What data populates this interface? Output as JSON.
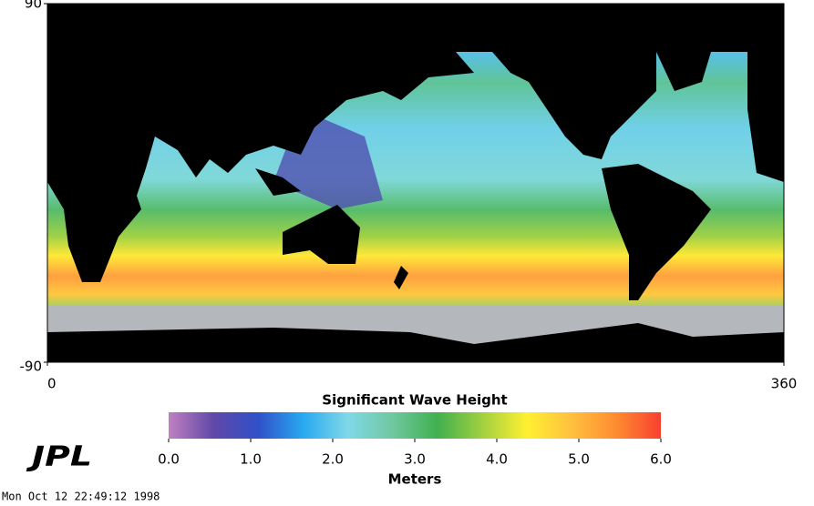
{
  "map": {
    "xlim": [
      0,
      360
    ],
    "ylim": [
      -90,
      90
    ],
    "xticks": [
      0,
      360
    ],
    "yticks": [
      -90,
      90
    ]
  },
  "colorbar": {
    "title": "Significant Wave Height",
    "unit_label": "Meters",
    "range": [
      0,
      6
    ],
    "ticks": [
      {
        "value": 0,
        "label": "0.0"
      },
      {
        "value": 1,
        "label": "1.0"
      },
      {
        "value": 2,
        "label": "2.0"
      },
      {
        "value": 3,
        "label": "3.0"
      },
      {
        "value": 4,
        "label": "4.0"
      },
      {
        "value": 5,
        "label": "5.0"
      },
      {
        "value": 6,
        "label": "6.0"
      }
    ],
    "colors": [
      "#c080c0",
      "#6048a8",
      "#3050c8",
      "#28a8f0",
      "#80d8e8",
      "#70c8a0",
      "#40b050",
      "#a0d040",
      "#fff030",
      "#ffc040",
      "#ff8c30",
      "#f84030"
    ]
  },
  "logo": "JPL",
  "timestamp": "Mon Oct 12 22:49:12 1998"
}
